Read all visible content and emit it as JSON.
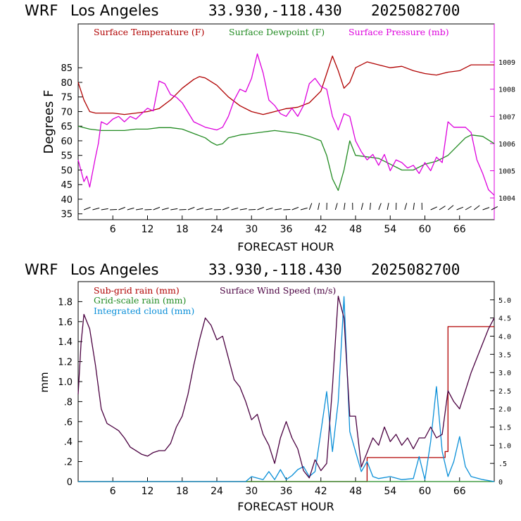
{
  "colors": {
    "temperature": "#b00000",
    "dewpoint": "#228b22",
    "pressure": "#dd00dd",
    "subgrid_rain": "#b00000",
    "gridscale_rain": "#228b22",
    "integrated_cloud": "#0a8fd8",
    "wind_speed": "#4a0040",
    "axis": "#000000"
  },
  "chart_data": [
    {
      "type": "line",
      "header": {
        "model": "WRF",
        "location": "Los Angeles",
        "coords": "33.930,-118.430",
        "run": "2025082700"
      },
      "xlabel": "FORECAST HOUR",
      "ylabel": "Degrees F",
      "xlim": [
        0,
        72
      ],
      "ylim": [
        33,
        100
      ],
      "y2lim": [
        1003.2,
        1010.4
      ],
      "x_ticks": [
        6,
        12,
        18,
        24,
        30,
        36,
        42,
        48,
        54,
        60,
        66
      ],
      "y_ticks": [
        35,
        40,
        45,
        50,
        55,
        60,
        65,
        70,
        75,
        80,
        85
      ],
      "y2_ticks": [
        1004,
        1005,
        1006,
        1007,
        1008,
        1009
      ],
      "wind_barbs_row": true,
      "series": [
        {
          "name": "Surface Temperature (F)",
          "axis": "left",
          "x": [
            0,
            1,
            2,
            3,
            4,
            6,
            8,
            10,
            12,
            14,
            16,
            18,
            20,
            21,
            22,
            24,
            26,
            28,
            30,
            32,
            34,
            36,
            38,
            40,
            42,
            43,
            44,
            45,
            46,
            47,
            48,
            50,
            52,
            54,
            56,
            58,
            60,
            62,
            64,
            66,
            68,
            70,
            72
          ],
          "y": [
            80,
            74,
            70,
            69.5,
            69.5,
            69.5,
            69,
            69.5,
            70,
            71,
            74,
            78,
            81,
            82,
            81.5,
            79,
            75,
            72,
            70,
            69,
            70,
            71,
            71.5,
            73,
            77,
            83,
            89,
            84,
            78,
            80,
            85,
            87,
            86,
            85,
            85.5,
            84,
            83,
            82.5,
            83.5,
            84,
            86,
            86,
            86
          ]
        },
        {
          "name": "Surface Dewpoint (F)",
          "axis": "left",
          "x": [
            0,
            2,
            4,
            6,
            8,
            10,
            12,
            14,
            16,
            18,
            20,
            22,
            23,
            24,
            25,
            26,
            28,
            30,
            32,
            34,
            36,
            38,
            40,
            42,
            43,
            44,
            45,
            46,
            47,
            48,
            50,
            52,
            54,
            56,
            58,
            60,
            62,
            64,
            66,
            67,
            68,
            70,
            72
          ],
          "y": [
            65,
            64,
            63.5,
            63.5,
            63.5,
            64,
            64,
            64.5,
            64.5,
            64,
            62.5,
            61,
            59.5,
            58.5,
            59,
            61,
            62,
            62.5,
            63,
            63.5,
            63,
            62.5,
            61.5,
            60,
            55,
            47,
            43,
            50,
            60,
            55,
            54.5,
            54,
            52,
            50,
            50,
            52,
            53,
            55,
            59,
            61,
            62,
            61.5,
            59
          ]
        },
        {
          "name": "Surface Pressure (mb)",
          "axis": "right",
          "x": [
            0,
            0.5,
            1,
            1.5,
            2,
            3,
            3.5,
            4,
            5,
            6,
            7,
            8,
            9,
            10,
            11,
            12,
            13,
            14,
            15,
            16,
            17,
            18,
            20,
            22,
            24,
            25,
            26,
            27,
            28,
            29,
            30,
            31,
            32,
            33,
            34,
            35,
            36,
            37,
            38,
            39,
            40,
            41,
            42,
            43,
            44,
            45,
            46,
            47,
            48,
            49,
            50,
            51,
            52,
            53,
            54,
            55,
            56,
            57,
            58,
            59,
            60,
            61,
            62,
            63,
            64,
            65,
            66,
            67,
            68,
            69,
            70,
            71,
            72
          ],
          "y": [
            1005.4,
            1005.0,
            1004.6,
            1004.8,
            1004.4,
            1005.5,
            1006.0,
            1006.8,
            1006.7,
            1006.9,
            1007.0,
            1006.8,
            1007.0,
            1006.9,
            1007.1,
            1007.3,
            1007.2,
            1008.3,
            1008.2,
            1007.8,
            1007.7,
            1007.5,
            1006.8,
            1006.6,
            1006.5,
            1006.6,
            1007.0,
            1007.6,
            1008.0,
            1007.9,
            1008.4,
            1009.3,
            1008.6,
            1007.6,
            1007.4,
            1007.1,
            1007.0,
            1007.3,
            1007.0,
            1007.4,
            1008.2,
            1008.4,
            1008.1,
            1008.0,
            1007.0,
            1006.5,
            1007.1,
            1007.0,
            1006.1,
            1005.7,
            1005.4,
            1005.6,
            1005.2,
            1005.6,
            1005.0,
            1005.4,
            1005.3,
            1005.1,
            1005.2,
            1004.9,
            1005.3,
            1005.0,
            1005.5,
            1005.3,
            1006.8,
            1006.6,
            1006.6,
            1006.6,
            1006.4,
            1005.4,
            1004.9,
            1004.3,
            1004.1
          ]
        }
      ]
    },
    {
      "type": "line",
      "header": {
        "model": "WRF",
        "location": "Los Angeles",
        "coords": "33.930,-118.430",
        "run": "2025082700"
      },
      "xlabel": "FORECAST HOUR",
      "ylabel": "mm",
      "xlim": [
        0,
        72
      ],
      "ylim": [
        0,
        2.0
      ],
      "y2lim": [
        0,
        5.5
      ],
      "x_ticks": [
        6,
        12,
        18,
        24,
        30,
        36,
        42,
        48,
        54,
        60,
        66
      ],
      "y_ticks": [
        0,
        0.2,
        0.4,
        0.6,
        0.8,
        1.0,
        1.2,
        1.4,
        1.6,
        1.8
      ],
      "y_tick_labels": [
        "0",
        ".2",
        ".4",
        ".6",
        ".8",
        "1.0",
        "1.2",
        "1.4",
        "1.6",
        "1.8"
      ],
      "y2_ticks": [
        0,
        0.5,
        1.0,
        1.5,
        2.0,
        2.5,
        3.0,
        3.5,
        4.0,
        4.5,
        5.0
      ],
      "y2_tick_labels": [
        "0",
        ".5",
        "1.0",
        "1.5",
        "2.0",
        "2.5",
        "3.0",
        "3.5",
        "4.0",
        "4.5",
        "5.0"
      ],
      "series": [
        {
          "name": "Sub-grid rain (mm)",
          "axis": "left",
          "step": true,
          "x": [
            0,
            49.5,
            50,
            62.5,
            63.5,
            64,
            72
          ],
          "y": [
            0,
            0,
            0.24,
            0.24,
            0.3,
            1.55,
            1.55
          ]
        },
        {
          "name": "Grid-scale rain (mm)",
          "axis": "left",
          "x": [
            0,
            72
          ],
          "y": [
            0,
            0
          ]
        },
        {
          "name": "Integrated cloud (mm)",
          "axis": "left",
          "x": [
            0,
            29,
            30,
            32,
            33,
            34,
            35,
            36,
            37,
            38,
            39,
            40,
            41,
            42,
            43,
            44,
            45,
            46,
            47,
            48,
            49,
            50,
            51,
            52,
            54,
            56,
            58,
            59,
            60,
            61,
            62,
            63,
            64,
            65,
            66,
            67,
            68,
            70,
            72
          ],
          "y": [
            0,
            0,
            0.05,
            0.02,
            0.1,
            0.02,
            0.12,
            0.02,
            0.06,
            0.12,
            0.15,
            0.05,
            0.1,
            0.5,
            0.9,
            0.3,
            0.8,
            1.85,
            0.5,
            0.3,
            0.1,
            0.2,
            0.05,
            0.03,
            0.05,
            0.02,
            0.03,
            0.25,
            0.02,
            0.4,
            0.95,
            0.3,
            0.05,
            0.2,
            0.45,
            0.15,
            0.05,
            0.02,
            0
          ]
        },
        {
          "name": "Surface Wind Speed (m/s)",
          "axis": "right",
          "x": [
            0,
            0.5,
            1,
            2,
            3,
            4,
            5,
            6,
            7,
            8,
            9,
            10,
            11,
            12,
            13,
            14,
            15,
            16,
            17,
            18,
            19,
            20,
            21,
            22,
            23,
            24,
            25,
            26,
            27,
            28,
            29,
            30,
            31,
            32,
            33,
            34,
            35,
            36,
            37,
            38,
            39,
            40,
            41,
            42,
            43,
            44,
            45,
            46,
            47,
            48,
            49,
            50,
            51,
            52,
            53,
            54,
            55,
            56,
            57,
            58,
            59,
            60,
            61,
            62,
            63,
            64,
            65,
            66,
            67,
            68,
            69,
            70,
            71,
            72
          ],
          "y": [
            2.4,
            3.8,
            4.6,
            4.2,
            3.2,
            2.0,
            1.6,
            1.5,
            1.4,
            1.2,
            0.95,
            0.85,
            0.75,
            0.7,
            0.8,
            0.85,
            0.85,
            1.05,
            1.5,
            1.8,
            2.4,
            3.2,
            3.9,
            4.5,
            4.3,
            3.9,
            4.0,
            3.4,
            2.8,
            2.6,
            2.2,
            1.7,
            1.85,
            1.3,
            1.0,
            0.5,
            1.2,
            1.65,
            1.2,
            0.9,
            0.3,
            0.1,
            0.6,
            0.3,
            0.5,
            2.6,
            5.1,
            4.5,
            1.8,
            1.8,
            0.4,
            0.8,
            1.2,
            1.0,
            1.5,
            1.1,
            1.3,
            1.0,
            1.2,
            0.9,
            1.2,
            1.2,
            1.5,
            1.2,
            1.3,
            2.5,
            2.2,
            2.0,
            2.5,
            3.0,
            3.4,
            3.8,
            4.2,
            4.5
          ]
        }
      ]
    }
  ]
}
